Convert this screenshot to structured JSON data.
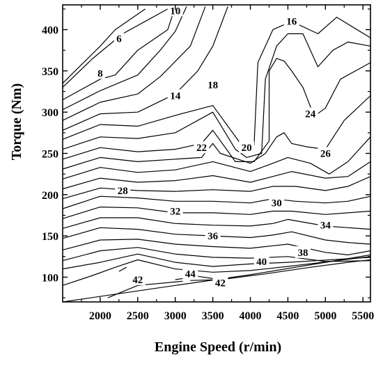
{
  "chart_data": {
    "type": "contour",
    "title": "",
    "xlabel": "Engine Speed (r/min)",
    "ylabel": "Torque (Nm)",
    "xlim": [
      1500,
      5600
    ],
    "ylim": [
      70,
      430
    ],
    "xticks": [
      2000,
      2500,
      3000,
      3500,
      4000,
      4500,
      5000,
      5500
    ],
    "yticks": [
      100,
      150,
      200,
      250,
      300,
      350,
      400
    ],
    "grid": false,
    "line_color": "#000000",
    "contour_labels": [
      {
        "text": "6",
        "x": 2250,
        "y": 389
      },
      {
        "text": "8",
        "x": 2000,
        "y": 347
      },
      {
        "text": "10",
        "x": 3000,
        "y": 423
      },
      {
        "text": "14",
        "x": 3000,
        "y": 320
      },
      {
        "text": "16",
        "x": 4550,
        "y": 410
      },
      {
        "text": "18",
        "x": 3500,
        "y": 333
      },
      {
        "text": "20",
        "x": 3950,
        "y": 257
      },
      {
        "text": "22",
        "x": 3350,
        "y": 257
      },
      {
        "text": "24",
        "x": 4800,
        "y": 298
      },
      {
        "text": "26",
        "x": 5000,
        "y": 250
      },
      {
        "text": "28",
        "x": 2300,
        "y": 205
      },
      {
        "text": "30",
        "x": 4350,
        "y": 190
      },
      {
        "text": "32",
        "x": 3000,
        "y": 180
      },
      {
        "text": "34",
        "x": 5000,
        "y": 163
      },
      {
        "text": "36",
        "x": 3500,
        "y": 150
      },
      {
        "text": "38",
        "x": 4700,
        "y": 130
      },
      {
        "text": "40",
        "x": 4150,
        "y": 119
      },
      {
        "text": "42",
        "x": 2500,
        "y": 97
      },
      {
        "text": "44",
        "x": 3200,
        "y": 104
      },
      {
        "text": "42",
        "x": 3600,
        "y": 93
      }
    ],
    "contours": [
      {
        "points": [
          [
            1500,
            335
          ],
          [
            1800,
            362
          ],
          [
            2000,
            380
          ],
          [
            2200,
            400
          ],
          [
            2600,
            425
          ]
        ]
      },
      {
        "points": [
          [
            1500,
            330
          ],
          [
            1900,
            365
          ],
          [
            2300,
            395
          ],
          [
            2600,
            410
          ],
          [
            2900,
            425
          ]
        ]
      },
      {
        "points": [
          [
            1500,
            315
          ],
          [
            2000,
            340
          ],
          [
            2200,
            345
          ],
          [
            2500,
            375
          ],
          [
            2900,
            400
          ],
          [
            3000,
            428
          ]
        ]
      },
      {
        "points": [
          [
            1500,
            303
          ],
          [
            2000,
            326
          ],
          [
            2500,
            345
          ],
          [
            2800,
            375
          ],
          [
            3000,
            398
          ],
          [
            3150,
            428
          ]
        ]
      },
      {
        "points": [
          [
            1500,
            290
          ],
          [
            2000,
            312
          ],
          [
            2500,
            322
          ],
          [
            2800,
            343
          ],
          [
            3200,
            380
          ],
          [
            3400,
            428
          ]
        ]
      },
      {
        "points": [
          [
            1500,
            278
          ],
          [
            2000,
            298
          ],
          [
            2500,
            300
          ],
          [
            3000,
            322
          ],
          [
            3300,
            350
          ],
          [
            3500,
            380
          ],
          [
            3700,
            428
          ]
        ]
      },
      {
        "points": [
          [
            1500,
            267
          ],
          [
            2000,
            285
          ],
          [
            2500,
            283
          ],
          [
            3000,
            296
          ],
          [
            3500,
            308
          ],
          [
            3900,
            258
          ],
          [
            4050,
            260
          ],
          [
            4100,
            360
          ],
          [
            4300,
            400
          ],
          [
            4550,
            410
          ],
          [
            4900,
            395
          ],
          [
            5150,
            415
          ],
          [
            5600,
            390
          ]
        ]
      },
      {
        "points": [
          [
            1500,
            255
          ],
          [
            2000,
            270
          ],
          [
            2500,
            268
          ],
          [
            3000,
            275
          ],
          [
            3500,
            300
          ],
          [
            3800,
            255
          ],
          [
            3950,
            245
          ],
          [
            4150,
            250
          ],
          [
            4200,
            340
          ],
          [
            4350,
            380
          ],
          [
            4500,
            395
          ],
          [
            4700,
            395
          ],
          [
            4900,
            355
          ],
          [
            5100,
            375
          ],
          [
            5300,
            385
          ],
          [
            5600,
            380
          ]
        ]
      },
      {
        "points": [
          [
            1500,
            243
          ],
          [
            2000,
            257
          ],
          [
            2500,
            252
          ],
          [
            3000,
            255
          ],
          [
            3350,
            262
          ],
          [
            3500,
            278
          ],
          [
            3800,
            240
          ],
          [
            4050,
            240
          ],
          [
            4250,
            265
          ],
          [
            4250,
            350
          ],
          [
            4350,
            365
          ],
          [
            4450,
            362
          ],
          [
            4550,
            350
          ],
          [
            4700,
            330
          ],
          [
            4850,
            295
          ],
          [
            5000,
            305
          ],
          [
            5200,
            340
          ],
          [
            5600,
            360
          ]
        ]
      },
      {
        "points": [
          [
            1500,
            231
          ],
          [
            2000,
            245
          ],
          [
            2500,
            240
          ],
          [
            3000,
            243
          ],
          [
            3350,
            245
          ],
          [
            3500,
            262
          ],
          [
            3600,
            250
          ],
          [
            4000,
            238
          ],
          [
            4200,
            250
          ],
          [
            4350,
            270
          ],
          [
            4450,
            275
          ],
          [
            4550,
            262
          ],
          [
            4750,
            258
          ],
          [
            5000,
            255
          ],
          [
            5250,
            290
          ],
          [
            5600,
            320
          ]
        ]
      },
      {
        "points": [
          [
            1500,
            219
          ],
          [
            2000,
            233
          ],
          [
            2500,
            227
          ],
          [
            3000,
            230
          ],
          [
            3500,
            240
          ],
          [
            4000,
            228
          ],
          [
            4300,
            238
          ],
          [
            4500,
            245
          ],
          [
            4800,
            238
          ],
          [
            5050,
            225
          ],
          [
            5300,
            240
          ],
          [
            5600,
            270
          ]
        ]
      },
      {
        "points": [
          [
            1500,
            207
          ],
          [
            2000,
            220
          ],
          [
            2500,
            215
          ],
          [
            3000,
            217
          ],
          [
            3500,
            223
          ],
          [
            4000,
            215
          ],
          [
            4300,
            222
          ],
          [
            4550,
            228
          ],
          [
            5000,
            220
          ],
          [
            5300,
            222
          ],
          [
            5600,
            240
          ]
        ]
      },
      {
        "points": [
          [
            1500,
            195
          ],
          [
            2000,
            208
          ],
          [
            2500,
            205
          ],
          [
            3000,
            204
          ],
          [
            3500,
            206
          ],
          [
            4000,
            204
          ],
          [
            4300,
            210
          ],
          [
            4600,
            210
          ],
          [
            5000,
            205
          ],
          [
            5300,
            210
          ],
          [
            5600,
            222
          ]
        ]
      },
      {
        "points": [
          [
            1500,
            183
          ],
          [
            2000,
            198
          ],
          [
            2500,
            196
          ],
          [
            3000,
            192
          ],
          [
            3500,
            192
          ],
          [
            4000,
            190
          ],
          [
            4300,
            195
          ],
          [
            4600,
            192
          ],
          [
            5000,
            190
          ],
          [
            5300,
            192
          ],
          [
            5600,
            198
          ]
        ]
      },
      {
        "points": [
          [
            1500,
            171
          ],
          [
            2000,
            185
          ],
          [
            2500,
            184
          ],
          [
            3000,
            178
          ],
          [
            3500,
            178
          ],
          [
            4000,
            176
          ],
          [
            4300,
            180
          ],
          [
            4550,
            180
          ],
          [
            5000,
            176
          ],
          [
            5300,
            178
          ],
          [
            5600,
            180
          ]
        ]
      },
      {
        "points": [
          [
            1500,
            159
          ],
          [
            2000,
            172
          ],
          [
            2500,
            172
          ],
          [
            3000,
            165
          ],
          [
            3500,
            163
          ],
          [
            4000,
            162
          ],
          [
            4300,
            165
          ],
          [
            4500,
            170
          ],
          [
            5000,
            162
          ],
          [
            5300,
            160
          ],
          [
            5600,
            158
          ]
        ]
      },
      {
        "points": [
          [
            1500,
            147
          ],
          [
            2000,
            160
          ],
          [
            2500,
            158
          ],
          [
            3000,
            152
          ],
          [
            3500,
            150
          ],
          [
            4000,
            148
          ],
          [
            4300,
            151
          ],
          [
            4550,
            155
          ],
          [
            5000,
            145
          ],
          [
            5300,
            142
          ],
          [
            5600,
            140
          ]
        ]
      },
      {
        "points": [
          [
            1500,
            133
          ],
          [
            2000,
            145
          ],
          [
            2500,
            146
          ],
          [
            3000,
            140
          ],
          [
            3500,
            137
          ],
          [
            4000,
            135
          ],
          [
            4300,
            138
          ],
          [
            4500,
            140
          ],
          [
            5000,
            130
          ],
          [
            5300,
            127
          ],
          [
            5600,
            132
          ]
        ]
      },
      {
        "points": [
          [
            1500,
            120
          ],
          [
            2000,
            132
          ],
          [
            2500,
            136
          ],
          [
            3000,
            128
          ],
          [
            3500,
            124
          ],
          [
            4000,
            123
          ],
          [
            4500,
            125
          ],
          [
            5000,
            119
          ],
          [
            5600,
            120
          ]
        ]
      },
      {
        "points": [
          [
            1500,
            110
          ],
          [
            2000,
            118
          ],
          [
            2500,
            128
          ],
          [
            3000,
            118
          ],
          [
            3500,
            113
          ],
          [
            4000,
            116
          ],
          [
            4500,
            118
          ],
          [
            5600,
            124
          ]
        ]
      },
      {
        "points": [
          [
            1500,
            90
          ],
          [
            1900,
            102
          ],
          [
            2200,
            112
          ],
          [
            2500,
            121
          ],
          [
            3000,
            110
          ],
          [
            3500,
            106
          ],
          [
            4000,
            108
          ],
          [
            4500,
            113
          ],
          [
            5600,
            125
          ]
        ]
      },
      {
        "points": [
          [
            2250,
            107
          ],
          [
            2350,
            112
          ]
        ]
      },
      {
        "points": [
          [
            1500,
            70
          ],
          [
            3000,
            90
          ],
          [
            4000,
            103
          ],
          [
            5000,
            118
          ],
          [
            5600,
            127
          ]
        ]
      },
      {
        "points": [
          [
            2100,
            75
          ],
          [
            2500,
            90
          ],
          [
            3100,
            95
          ]
        ]
      },
      {
        "points": [
          [
            3000,
            97
          ],
          [
            3300,
            101
          ],
          [
            3600,
            97
          ]
        ]
      },
      {
        "points": [
          [
            3200,
            96
          ],
          [
            3600,
            97
          ],
          [
            4200,
            104
          ],
          [
            4800,
            112
          ],
          [
            5300,
            118
          ],
          [
            5600,
            121
          ]
        ]
      }
    ]
  }
}
